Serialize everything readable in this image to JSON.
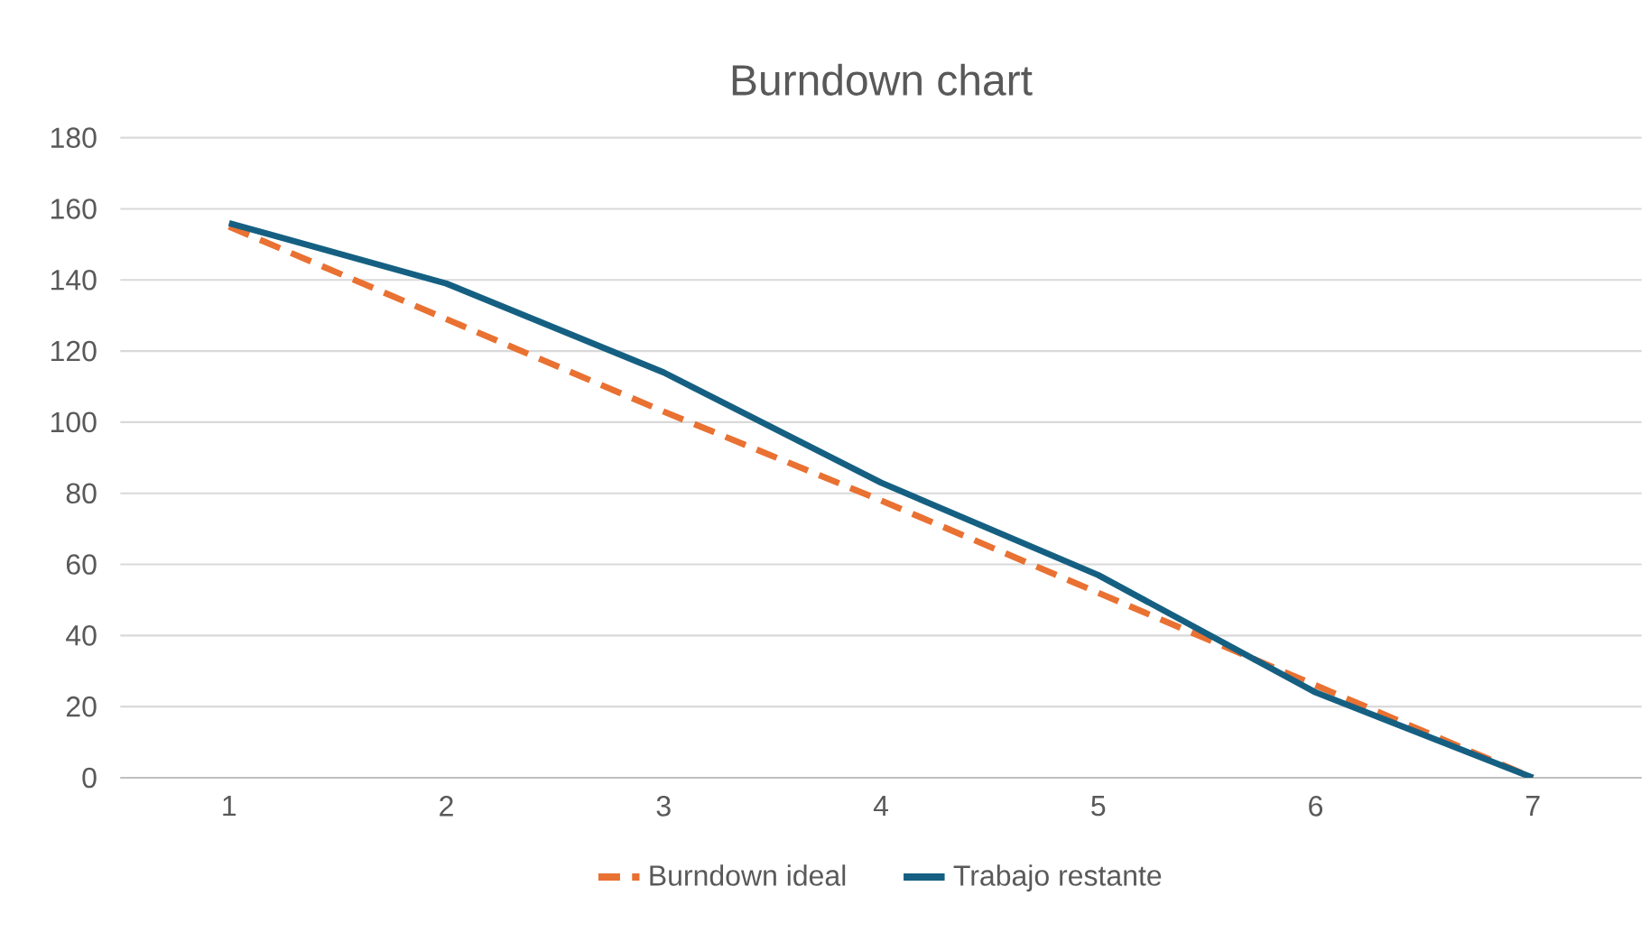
{
  "chart_data": {
    "type": "line",
    "title": "Burndown chart",
    "categories": [
      "1",
      "2",
      "3",
      "4",
      "5",
      "6",
      "7"
    ],
    "series": [
      {
        "name": "Burndown ideal",
        "color": "#e97132",
        "line_style": "dashed",
        "values": [
          155,
          129,
          103,
          78,
          52,
          26,
          0
        ]
      },
      {
        "name": "Trabajo restante",
        "color": "#156082",
        "line_style": "solid",
        "values": [
          156,
          139,
          114,
          83,
          57,
          24,
          0
        ]
      }
    ],
    "ylim": [
      0,
      180
    ],
    "yticks": [
      0,
      20,
      40,
      60,
      80,
      100,
      120,
      140,
      160,
      180
    ],
    "grid": "y",
    "legend": "bottom",
    "marker": "none"
  }
}
